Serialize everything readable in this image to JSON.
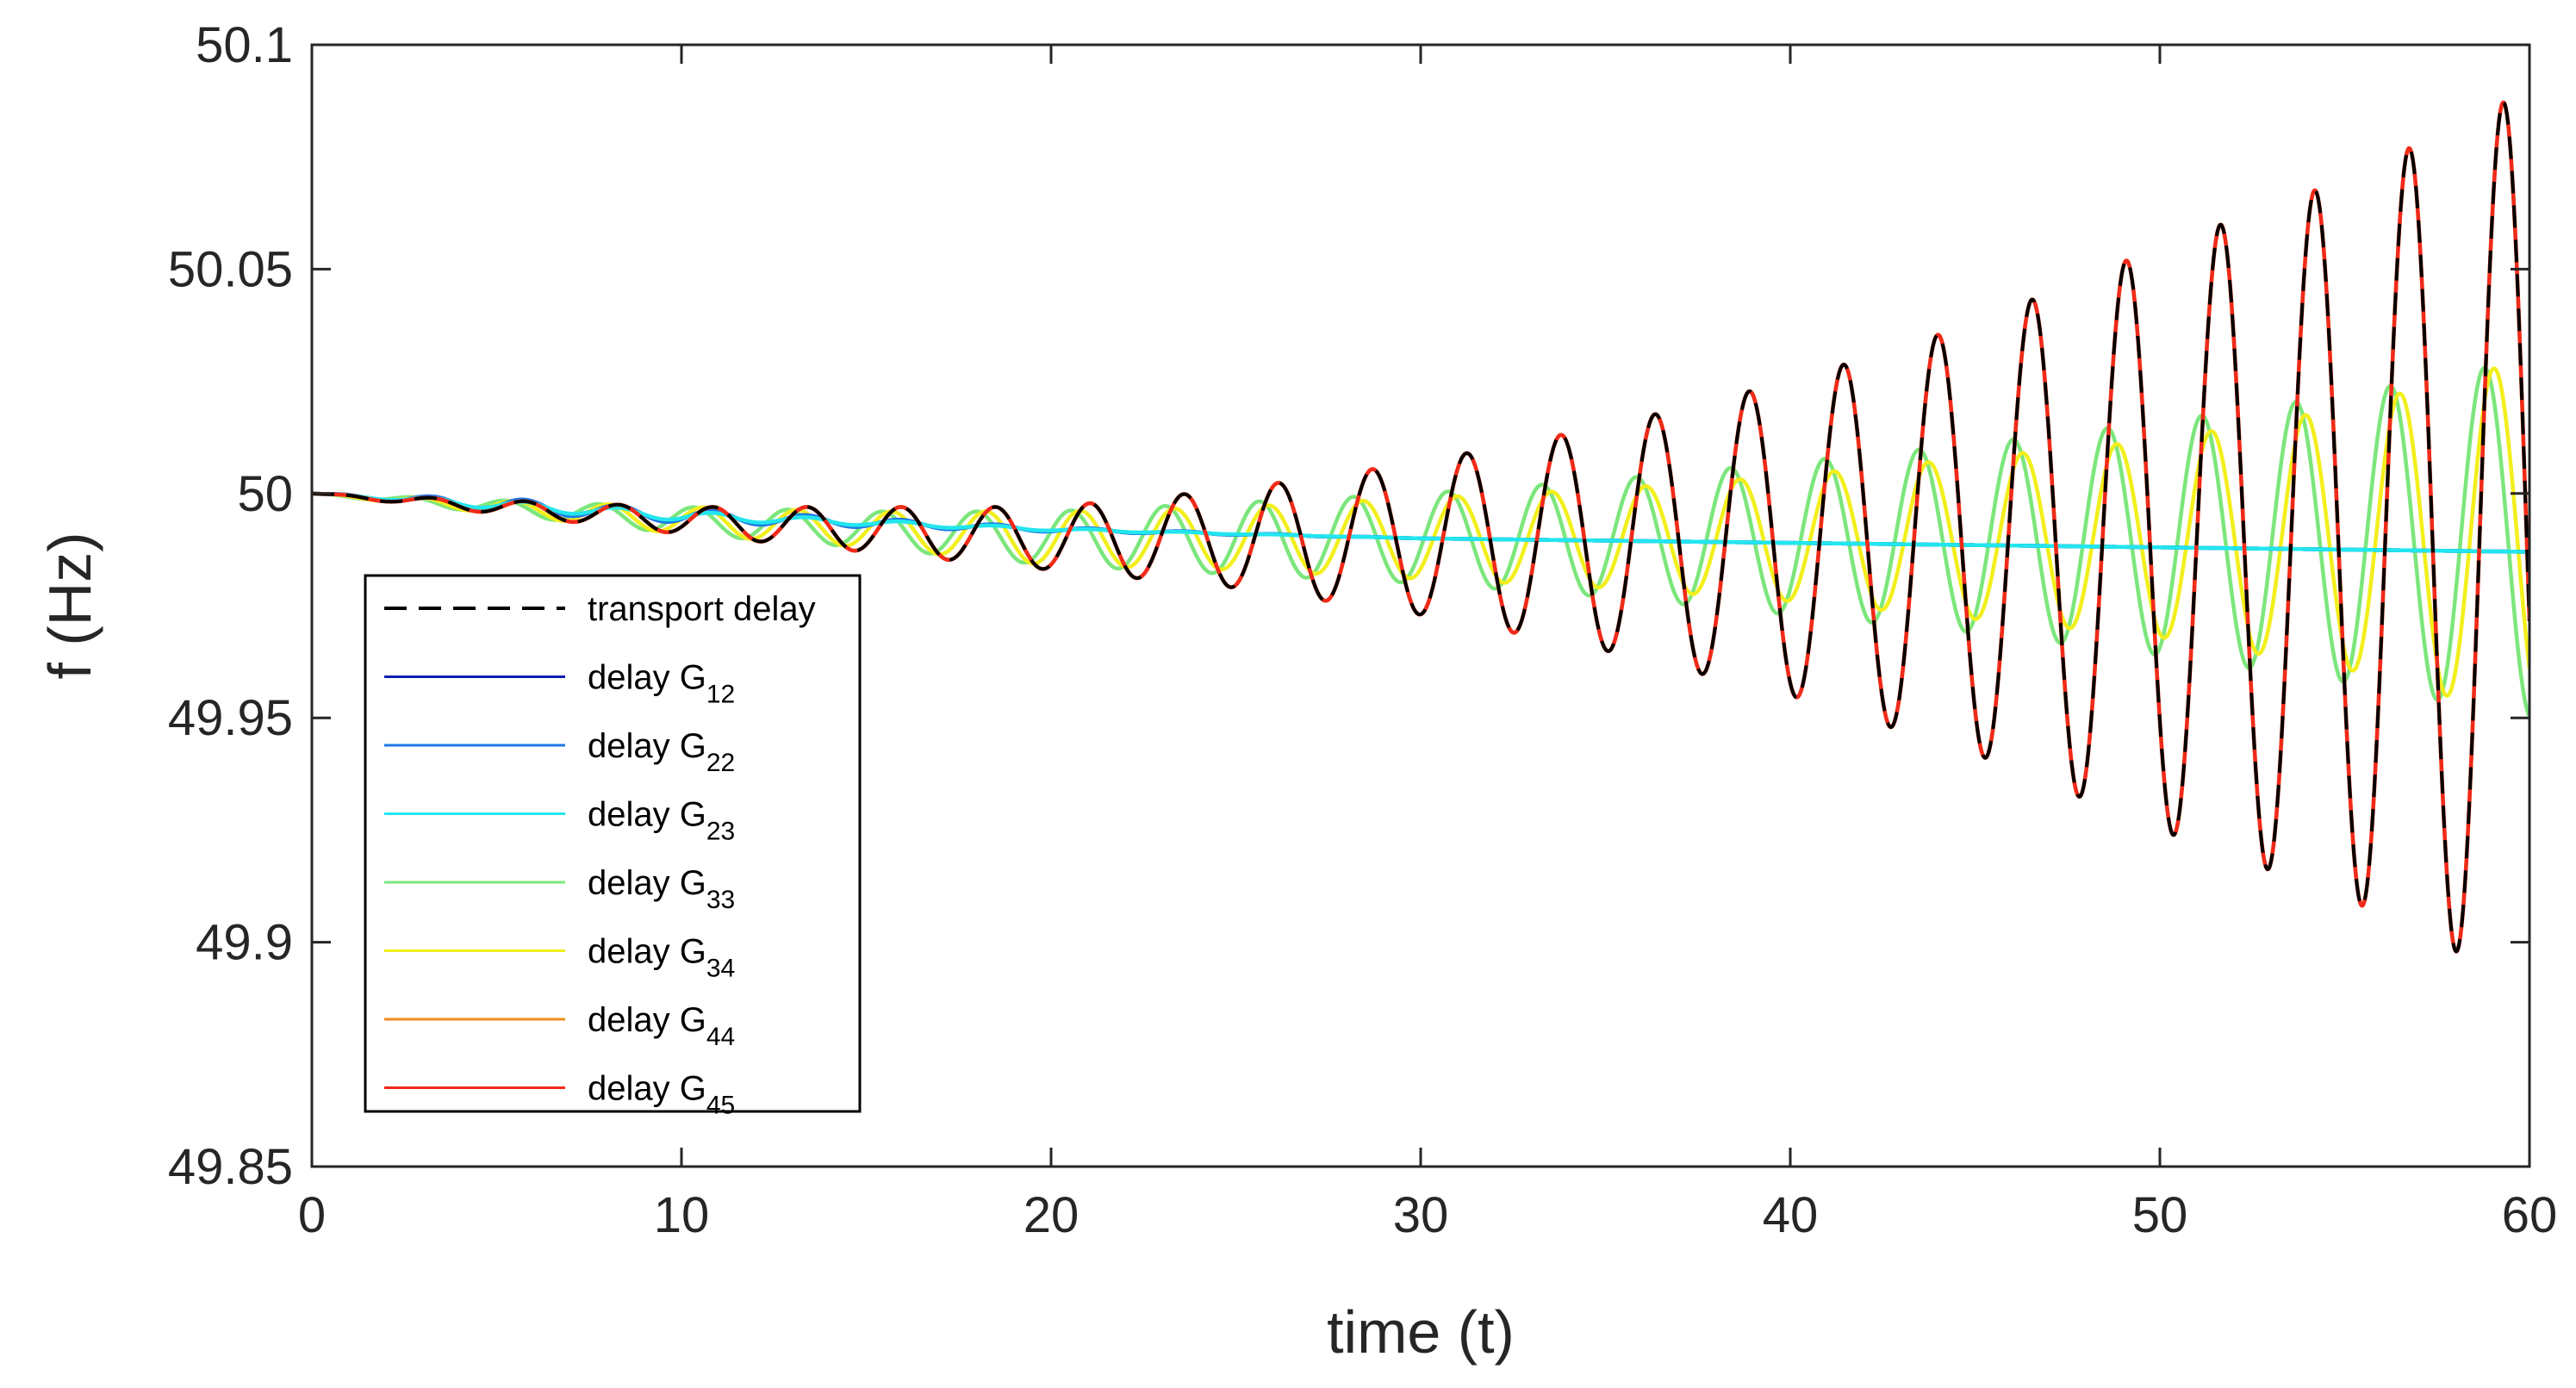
{
  "chart_data": {
    "type": "line",
    "title": "",
    "xlabel": "time (t)",
    "ylabel": "f (Hz)",
    "xlim": [
      0,
      60
    ],
    "ylim": [
      49.85,
      50.1
    ],
    "xticks": [
      0,
      10,
      20,
      30,
      40,
      50,
      60
    ],
    "xtick_labels": [
      "0",
      "10",
      "20",
      "30",
      "40",
      "50",
      "60"
    ],
    "yticks": [
      49.85,
      49.9,
      49.95,
      50,
      50.05,
      50.1
    ],
    "ytick_labels": [
      "49.85",
      "49.9",
      "49.95",
      "50",
      "50.05",
      "50.1"
    ],
    "grid": false,
    "legend_position": "lower-left",
    "x": [
      0,
      5,
      10,
      15,
      20,
      25,
      30,
      35,
      40,
      45,
      50,
      55,
      60
    ],
    "oscillation_period": 2.55,
    "series": [
      {
        "name": "transport delay",
        "legend_main": "transport delay",
        "legend_sub": "",
        "color": "#000000",
        "dash": "dashed",
        "trend": [
          50.0,
          49.997,
          49.994,
          49.992,
          49.99,
          49.99,
          49.99,
          49.99,
          49.99,
          49.99,
          49.99,
          49.99,
          49.99
        ],
        "amplitude": [
          0.0,
          0.0015,
          0.003,
          0.005,
          0.007,
          0.011,
          0.017,
          0.025,
          0.035,
          0.048,
          0.065,
          0.08,
          0.1
        ]
      },
      {
        "name": "delay G12",
        "legend_main": "delay G",
        "legend_sub": "12",
        "color": "#0a1fb0",
        "dash": "solid",
        "trend": [
          50.0,
          49.9975,
          49.995,
          49.9935,
          49.992,
          49.991,
          49.99,
          49.9895,
          49.989,
          49.9885,
          49.988,
          49.9875,
          49.987
        ],
        "amplitude": [
          0.0,
          0.0015,
          0.0015,
          0.001,
          0.0005,
          0.0002,
          0.0,
          0.0,
          0.0,
          0.0,
          0.0,
          0.0,
          0.0
        ]
      },
      {
        "name": "delay G22",
        "legend_main": "delay G",
        "legend_sub": "22",
        "color": "#1e78e6",
        "dash": "solid",
        "trend": [
          50.0,
          49.9975,
          49.995,
          49.9935,
          49.992,
          49.991,
          49.99,
          49.9895,
          49.989,
          49.9885,
          49.988,
          49.9875,
          49.987
        ],
        "amplitude": [
          0.0,
          0.0015,
          0.0015,
          0.001,
          0.0005,
          0.0002,
          0.0,
          0.0,
          0.0,
          0.0,
          0.0,
          0.0,
          0.0
        ]
      },
      {
        "name": "delay G23",
        "legend_main": "delay G",
        "legend_sub": "23",
        "color": "#22e6ee",
        "dash": "solid",
        "trend": [
          50.0,
          49.9975,
          49.995,
          49.9935,
          49.992,
          49.991,
          49.99,
          49.9895,
          49.989,
          49.9885,
          49.988,
          49.9875,
          49.987
        ],
        "amplitude": [
          0.0,
          0.001,
          0.001,
          0.0006,
          0.0003,
          0.0001,
          0.0,
          0.0,
          0.0,
          0.0,
          0.0,
          0.0,
          0.0
        ]
      },
      {
        "name": "delay G33",
        "legend_main": "delay G",
        "legend_sub": "33",
        "color": "#7ce67c",
        "dash": "solid",
        "trend": [
          50.0,
          49.997,
          49.994,
          49.992,
          49.99,
          49.99,
          49.99,
          49.99,
          49.99,
          49.99,
          49.99,
          49.99,
          49.99
        ],
        "amplitude": [
          0.0,
          0.0015,
          0.003,
          0.004,
          0.006,
          0.008,
          0.01,
          0.013,
          0.017,
          0.021,
          0.026,
          0.032,
          0.04
        ],
        "phase_shift": 0.4
      },
      {
        "name": "delay G34",
        "legend_main": "delay G",
        "legend_sub": "34",
        "color": "#f2ef1c",
        "dash": "solid",
        "trend": [
          50.0,
          49.997,
          49.994,
          49.992,
          49.99,
          49.99,
          49.99,
          49.99,
          49.99,
          49.99,
          49.99,
          49.99,
          49.99
        ],
        "amplitude": [
          0.0,
          0.0015,
          0.003,
          0.004,
          0.006,
          0.007,
          0.009,
          0.011,
          0.014,
          0.018,
          0.022,
          0.029,
          0.04
        ],
        "phase_shift": 0.2
      },
      {
        "name": "delay G44",
        "legend_main": "delay G",
        "legend_sub": "44",
        "color": "#f08a1e",
        "dash": "solid",
        "trend": [
          50.0,
          49.997,
          49.994,
          49.992,
          49.99,
          49.99,
          49.99,
          49.99,
          49.99,
          49.99,
          49.99,
          49.99,
          49.99
        ],
        "amplitude": [
          0.0,
          0.0015,
          0.003,
          0.005,
          0.007,
          0.011,
          0.017,
          0.025,
          0.035,
          0.048,
          0.065,
          0.08,
          0.1
        ]
      },
      {
        "name": "delay G45",
        "legend_main": "delay G",
        "legend_sub": "45",
        "color": "#f02a1a",
        "dash": "solid",
        "trend": [
          50.0,
          49.997,
          49.994,
          49.992,
          49.99,
          49.99,
          49.99,
          49.99,
          49.99,
          49.99,
          49.99,
          49.99,
          49.99
        ],
        "amplitude": [
          0.0,
          0.0015,
          0.003,
          0.005,
          0.007,
          0.011,
          0.017,
          0.025,
          0.035,
          0.048,
          0.065,
          0.08,
          0.1
        ]
      }
    ]
  }
}
